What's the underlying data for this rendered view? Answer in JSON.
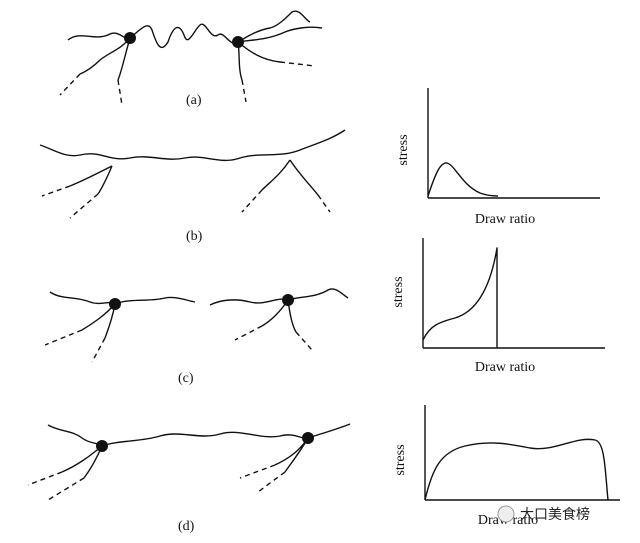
{
  "panels": [
    {
      "label": "(a)"
    },
    {
      "label": "(b)",
      "plot": {
        "y_label": "stress",
        "x_label": "Draw ratio"
      }
    },
    {
      "label": "(c)",
      "plot": {
        "y_label": "stress",
        "x_label": "Draw ratio"
      }
    },
    {
      "label": "(d)",
      "plot": {
        "y_label": "stress",
        "x_label": "Draw ratio"
      }
    }
  ],
  "watermark": "大口美食榜"
}
